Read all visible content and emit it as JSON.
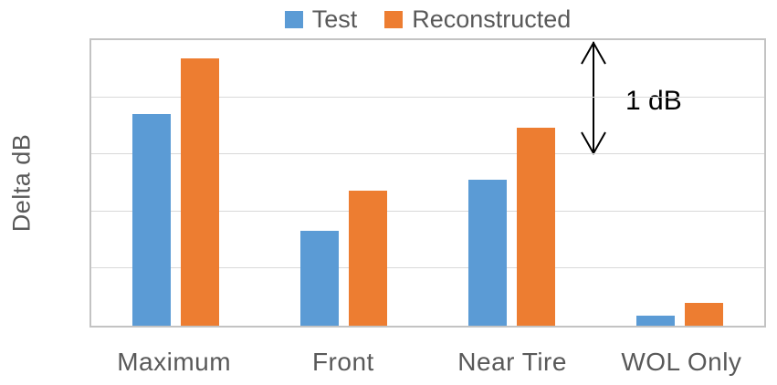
{
  "chart_data": {
    "type": "bar",
    "title": "",
    "categories": [
      "Maximum",
      "Front",
      "Near Tire",
      "WOL Only"
    ],
    "series": [
      {
        "name": "Test",
        "color": "#5B9BD5",
        "values": [
          1.85,
          0.83,
          1.28,
          0.09
        ]
      },
      {
        "name": "Reconstructed",
        "color": "#ED7D31",
        "values": [
          2.34,
          1.18,
          1.73,
          0.2
        ]
      }
    ],
    "xlabel": "",
    "ylabel": "Delta dB",
    "ylim": [
      0,
      2.5
    ],
    "gridline_interval": 0.5,
    "grid": true,
    "y_tick_labels_shown": false,
    "legend_position": "top",
    "annotation": {
      "label": "1 dB",
      "span_db": 1.0,
      "from_db": 2.5,
      "to_db": 1.5
    }
  },
  "colors": {
    "test_series": "#5B9BD5",
    "reconstructed_series": "#ED7D31",
    "axis_text": "#595959",
    "gridline": "#D9D9D9",
    "plot_border": "#C3C3C3",
    "annotation_text": "#000000"
  }
}
